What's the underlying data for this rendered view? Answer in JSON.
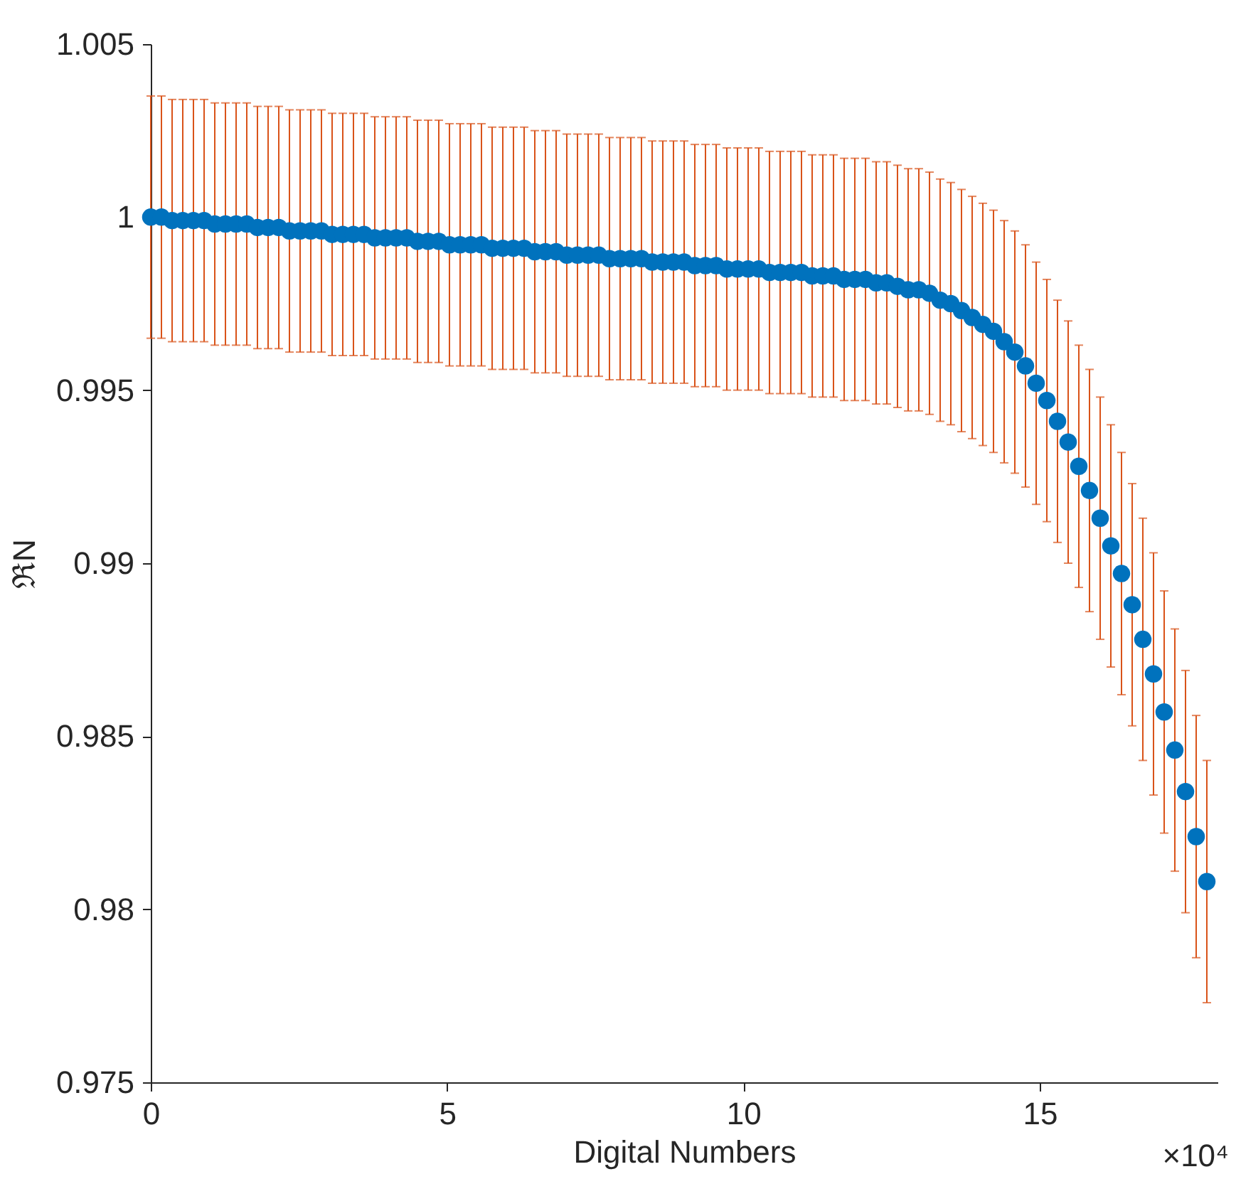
{
  "chart_data": {
    "type": "scatter",
    "xlabel": "Digital Numbers",
    "ylabel": "ℜN",
    "annotations": [
      "×10⁴"
    ],
    "xlim": [
      0,
      18
    ],
    "ylim": [
      0.975,
      1.005
    ],
    "xticks": [
      0,
      5,
      10,
      15
    ],
    "yticks": [
      0.975,
      0.98,
      0.985,
      0.99,
      0.995,
      1,
      1.005
    ],
    "grid": false,
    "marker": "circle",
    "x": [
      0,
      0.18,
      0.36,
      0.54,
      0.72,
      0.9,
      1.08,
      1.26,
      1.44,
      1.62,
      1.8,
      1.98,
      2.16,
      2.34,
      2.52,
      2.7,
      2.88,
      3.06,
      3.24,
      3.42,
      3.6,
      3.78,
      3.96,
      4.14,
      4.32,
      4.5,
      4.68,
      4.86,
      5.04,
      5.22,
      5.4,
      5.58,
      5.76,
      5.94,
      6.12,
      6.3,
      6.48,
      6.66,
      6.84,
      7.02,
      7.2,
      7.38,
      7.56,
      7.74,
      7.92,
      8.1,
      8.28,
      8.46,
      8.64,
      8.82,
      9,
      9.18,
      9.36,
      9.54,
      9.72,
      9.9,
      10.08,
      10.26,
      10.44,
      10.62,
      10.8,
      10.98,
      11.16,
      11.34,
      11.52,
      11.7,
      11.88,
      12.06,
      12.24,
      12.42,
      12.6,
      12.78,
      12.96,
      13.14,
      13.32,
      13.5,
      13.68,
      13.86,
      14.04,
      14.22,
      14.4,
      14.58,
      14.76,
      14.94,
      15.12,
      15.3,
      15.48,
      15.66,
      15.84,
      16.02,
      16.2,
      16.38,
      16.56,
      16.74,
      16.92,
      17.1,
      17.28,
      17.46,
      17.64,
      17.82
    ],
    "series": [
      {
        "color": "#0072bd",
        "values": [
          1.0,
          1.0,
          0.9999,
          0.9999,
          0.9999,
          0.9999,
          0.9998,
          0.9998,
          0.9998,
          0.9998,
          0.9997,
          0.9997,
          0.9997,
          0.9996,
          0.9996,
          0.9996,
          0.9996,
          0.9995,
          0.9995,
          0.9995,
          0.9995,
          0.9994,
          0.9994,
          0.9994,
          0.9994,
          0.9993,
          0.9993,
          0.9993,
          0.9992,
          0.9992,
          0.9992,
          0.9992,
          0.9991,
          0.9991,
          0.9991,
          0.9991,
          0.999,
          0.999,
          0.999,
          0.9989,
          0.9989,
          0.9989,
          0.9989,
          0.9988,
          0.9988,
          0.9988,
          0.9988,
          0.9987,
          0.9987,
          0.9987,
          0.9987,
          0.9986,
          0.9986,
          0.9986,
          0.9985,
          0.9985,
          0.9985,
          0.9985,
          0.9984,
          0.9984,
          0.9984,
          0.9984,
          0.9983,
          0.9983,
          0.9983,
          0.9982,
          0.9982,
          0.9982,
          0.9981,
          0.9981,
          0.998,
          0.9979,
          0.9979,
          0.9978,
          0.9976,
          0.9975,
          0.9973,
          0.9971,
          0.9969,
          0.9967,
          0.9964,
          0.9961,
          0.9957,
          0.9952,
          0.9947,
          0.9941,
          0.9935,
          0.9928,
          0.9921,
          0.9913,
          0.9905,
          0.9897,
          0.9888,
          0.9878,
          0.9868,
          0.9857,
          0.9846,
          0.9834,
          0.9821,
          0.9808
        ],
        "errors": [
          0.0035,
          0.0035,
          0.0035,
          0.0035,
          0.0035,
          0.0035,
          0.0035,
          0.0035,
          0.0035,
          0.0035,
          0.0035,
          0.0035,
          0.0035,
          0.0035,
          0.0035,
          0.0035,
          0.0035,
          0.0035,
          0.0035,
          0.0035,
          0.0035,
          0.0035,
          0.0035,
          0.0035,
          0.0035,
          0.0035,
          0.0035,
          0.0035,
          0.0035,
          0.0035,
          0.0035,
          0.0035,
          0.0035,
          0.0035,
          0.0035,
          0.0035,
          0.0035,
          0.0035,
          0.0035,
          0.0035,
          0.0035,
          0.0035,
          0.0035,
          0.0035,
          0.0035,
          0.0035,
          0.0035,
          0.0035,
          0.0035,
          0.0035,
          0.0035,
          0.0035,
          0.0035,
          0.0035,
          0.0035,
          0.0035,
          0.0035,
          0.0035,
          0.0035,
          0.0035,
          0.0035,
          0.0035,
          0.0035,
          0.0035,
          0.0035,
          0.0035,
          0.0035,
          0.0035,
          0.0035,
          0.0035,
          0.0035,
          0.0035,
          0.0035,
          0.0035,
          0.0035,
          0.0035,
          0.0035,
          0.0035,
          0.0035,
          0.0035,
          0.0035,
          0.0035,
          0.0035,
          0.0035,
          0.0035,
          0.0035,
          0.0035,
          0.0035,
          0.0035,
          0.0035,
          0.0035,
          0.0035,
          0.0035,
          0.0035,
          0.0035,
          0.0035,
          0.0035,
          0.0035,
          0.0035,
          0.0035
        ]
      }
    ]
  }
}
